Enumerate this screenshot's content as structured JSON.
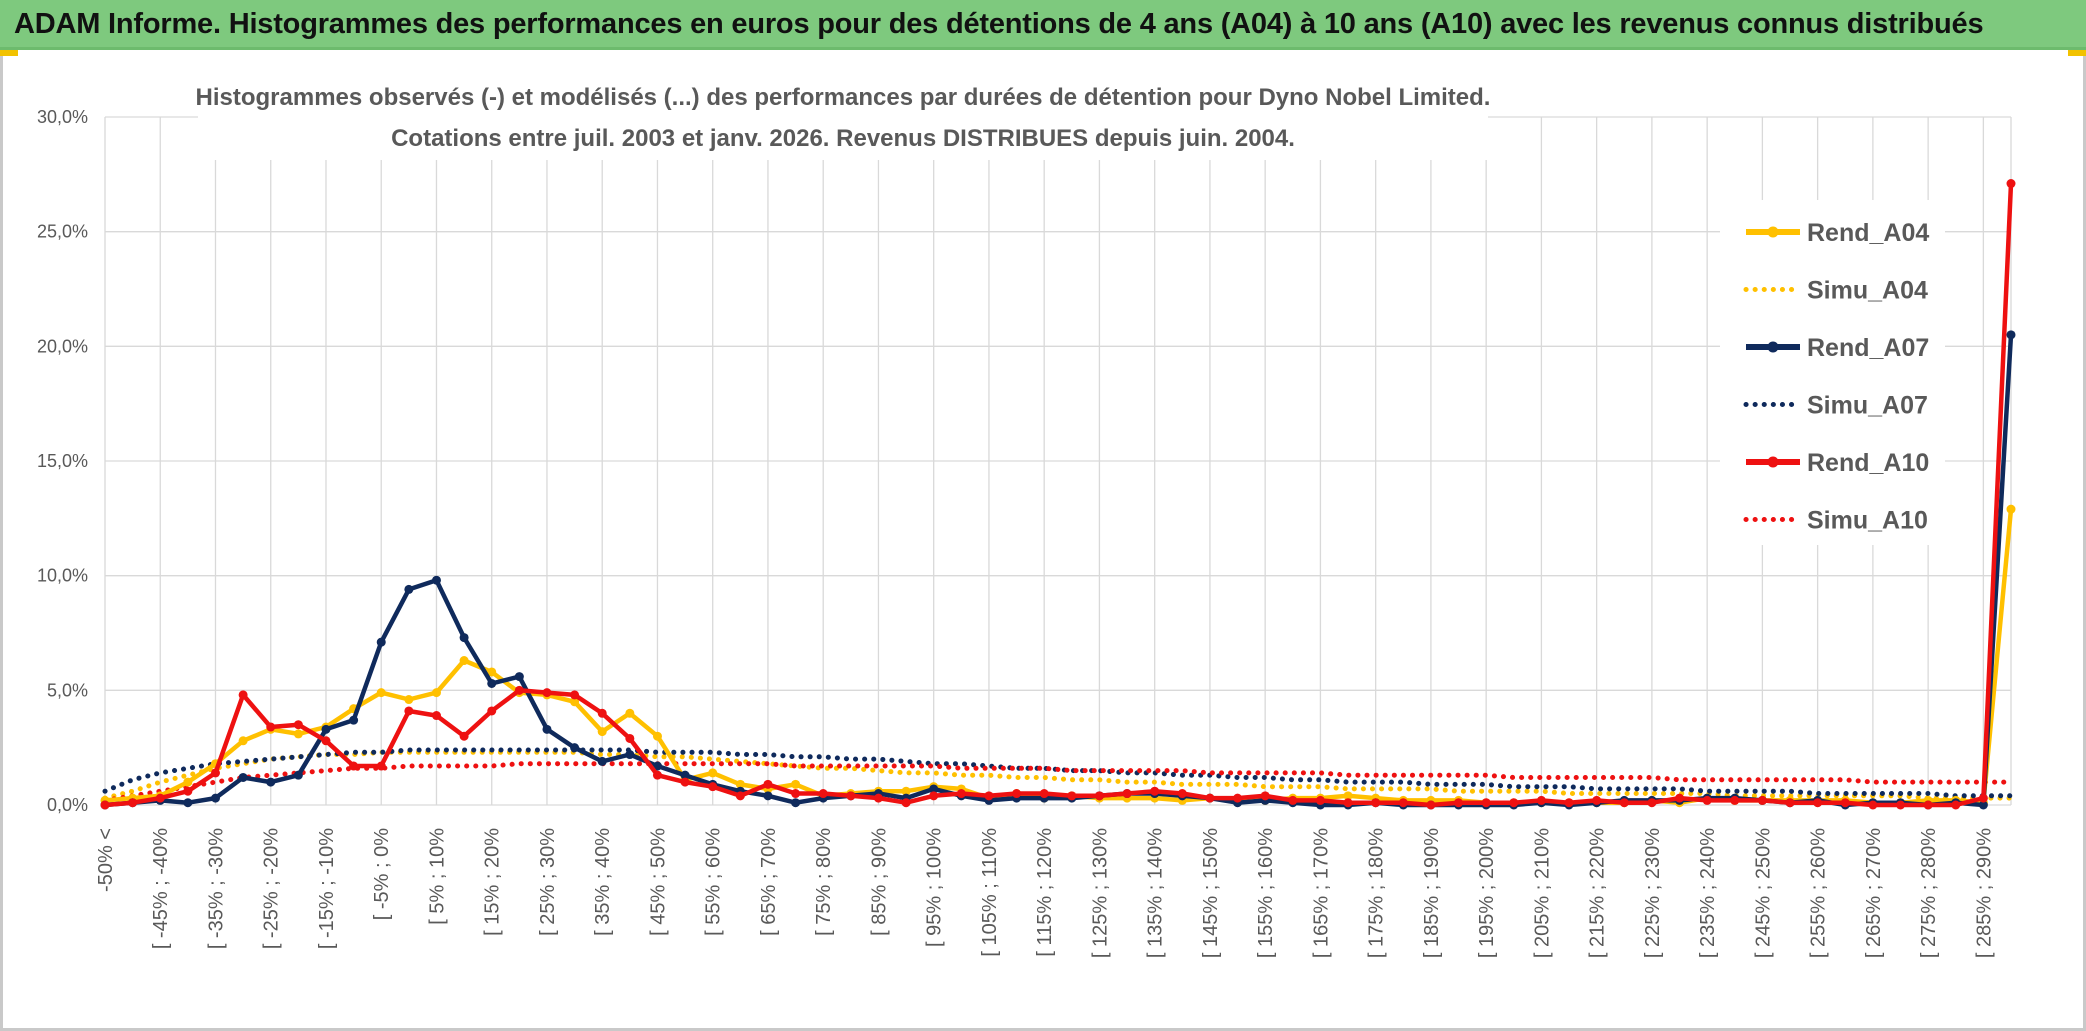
{
  "header": {
    "title": "ADAM Informe. Histogrammes des performances en euros pour des détentions de 4 ans (A04) à 10 ans (A10) avec les revenus connus distribués"
  },
  "colors": {
    "header_bg": "#7ec97e",
    "A04": "#ffc000",
    "A07": "#0f2a5c",
    "A10": "#ee1111"
  },
  "chart_data": {
    "type": "line",
    "title_line1": "Histogrammes observés (-) et modélisés (...) des performances par durées de détention pour Dyno Nobel Limited.",
    "title_line2": "Cotations entre juil. 2003 et janv. 2026. Revenus DISTRIBUES depuis juin. 2004.",
    "ylim": [
      0,
      30
    ],
    "yticks": [
      "0,0%",
      "5,0%",
      "10,0%",
      "15,0%",
      "20,0%",
      "25,0%",
      "30,0%"
    ],
    "x_tick_labels": [
      "-50% <",
      "[ -45% ; -40%",
      "[ -35% ; -30%",
      "[ -25% ; -20%",
      "[ -15% ; -10%",
      "[ -5% ; 0%",
      "[ 5% ; 10%",
      "[ 15% ; 20%",
      "[ 25% ; 30%",
      "[ 35% ; 40%",
      "[ 45% ; 50%",
      "[ 55% ; 60%",
      "[ 65% ; 70%",
      "[ 75% ; 80%",
      "[ 85% ; 90%",
      "[ 95% ; 100%",
      "[ 105% ; 110%",
      "[ 115% ; 120%",
      "[ 125% ; 130%",
      "[ 135% ; 140%",
      "[ 145% ; 150%",
      "[ 155% ; 160%",
      "[ 165% ; 170%",
      "[ 175% ; 180%",
      "[ 185% ; 190%",
      "[ 195% ; 200%",
      "[ 205% ; 210%",
      "[ 215% ; 220%",
      "[ 225% ; 230%",
      "[ 235% ; 240%",
      "[ 245% ; 250%",
      "[ 255% ; 260%",
      "[ 265% ; 270%",
      "[ 275% ; 280%",
      "[ 285% ; 290%"
    ],
    "n_points": 70,
    "legend_position": "right",
    "series": [
      {
        "name": "Rend_A04",
        "style": "solid",
        "color": "#ffc000",
        "values": [
          0.2,
          0.3,
          0.4,
          1.0,
          1.8,
          2.8,
          3.3,
          3.1,
          3.4,
          4.2,
          4.9,
          4.6,
          4.9,
          6.3,
          5.8,
          4.9,
          4.8,
          4.5,
          3.2,
          4.0,
          3.0,
          1.1,
          1.4,
          0.9,
          0.7,
          0.9,
          0.4,
          0.5,
          0.6,
          0.6,
          0.8,
          0.7,
          0.3,
          0.5,
          0.3,
          0.4,
          0.3,
          0.3,
          0.3,
          0.2,
          0.3,
          0.2,
          0.2,
          0.3,
          0.3,
          0.4,
          0.3,
          0.2,
          0.2,
          0.2,
          0.1,
          0.1,
          0.1,
          0.1,
          0.1,
          0.1,
          0.2,
          0.1,
          0.3,
          0.2,
          0.2,
          0.2,
          0.2,
          0.2,
          0.1,
          0.1,
          0.2,
          0.2,
          0.1,
          12.9
        ]
      },
      {
        "name": "Simu_A04",
        "style": "dotted",
        "color": "#ffc000",
        "values": [
          0.3,
          0.6,
          1.0,
          1.3,
          1.6,
          1.8,
          2.0,
          2.1,
          2.2,
          2.2,
          2.3,
          2.3,
          2.3,
          2.3,
          2.3,
          2.3,
          2.3,
          2.3,
          2.2,
          2.2,
          2.1,
          2.1,
          2.0,
          1.9,
          1.8,
          1.7,
          1.6,
          1.6,
          1.5,
          1.4,
          1.4,
          1.3,
          1.3,
          1.2,
          1.2,
          1.1,
          1.1,
          1.0,
          1.0,
          0.9,
          0.9,
          0.9,
          0.8,
          0.8,
          0.8,
          0.7,
          0.7,
          0.7,
          0.7,
          0.6,
          0.6,
          0.6,
          0.6,
          0.5,
          0.5,
          0.5,
          0.5,
          0.5,
          0.5,
          0.4,
          0.4,
          0.4,
          0.4,
          0.4,
          0.4,
          0.4,
          0.3,
          0.3,
          0.3,
          0.3
        ]
      },
      {
        "name": "Rend_A07",
        "style": "solid",
        "color": "#0f2a5c",
        "values": [
          0.0,
          0.1,
          0.2,
          0.1,
          0.3,
          1.2,
          1.0,
          1.3,
          3.3,
          3.7,
          7.1,
          9.4,
          9.8,
          7.3,
          5.3,
          5.6,
          3.3,
          2.5,
          1.9,
          2.2,
          1.7,
          1.3,
          0.9,
          0.6,
          0.4,
          0.1,
          0.3,
          0.4,
          0.5,
          0.3,
          0.7,
          0.4,
          0.2,
          0.3,
          0.3,
          0.3,
          0.4,
          0.5,
          0.5,
          0.4,
          0.3,
          0.1,
          0.2,
          0.1,
          0.0,
          0.0,
          0.1,
          0.0,
          0.0,
          0.0,
          0.0,
          0.0,
          0.1,
          0.0,
          0.1,
          0.2,
          0.2,
          0.2,
          0.3,
          0.3,
          0.2,
          0.1,
          0.2,
          0.0,
          0.1,
          0.1,
          0.0,
          0.1,
          0.0,
          20.5
        ]
      },
      {
        "name": "Simu_A07",
        "style": "dotted",
        "color": "#0f2a5c",
        "values": [
          0.6,
          1.1,
          1.4,
          1.6,
          1.8,
          1.9,
          2.0,
          2.1,
          2.2,
          2.3,
          2.3,
          2.4,
          2.4,
          2.4,
          2.4,
          2.4,
          2.4,
          2.4,
          2.4,
          2.4,
          2.3,
          2.3,
          2.3,
          2.2,
          2.2,
          2.1,
          2.1,
          2.0,
          2.0,
          1.9,
          1.8,
          1.8,
          1.7,
          1.6,
          1.6,
          1.5,
          1.5,
          1.4,
          1.4,
          1.3,
          1.3,
          1.2,
          1.2,
          1.1,
          1.1,
          1.0,
          1.0,
          1.0,
          0.9,
          0.9,
          0.9,
          0.8,
          0.8,
          0.8,
          0.7,
          0.7,
          0.7,
          0.7,
          0.6,
          0.6,
          0.6,
          0.6,
          0.5,
          0.5,
          0.5,
          0.5,
          0.5,
          0.4,
          0.4,
          0.4
        ]
      },
      {
        "name": "Rend_A10",
        "style": "solid",
        "color": "#ee1111",
        "values": [
          0.0,
          0.1,
          0.3,
          0.6,
          1.4,
          4.8,
          3.4,
          3.5,
          2.8,
          1.7,
          1.7,
          4.1,
          3.9,
          3.0,
          4.1,
          5.0,
          4.9,
          4.8,
          4.0,
          2.9,
          1.3,
          1.0,
          0.8,
          0.4,
          0.9,
          0.5,
          0.5,
          0.4,
          0.3,
          0.1,
          0.4,
          0.5,
          0.4,
          0.5,
          0.5,
          0.4,
          0.4,
          0.5,
          0.6,
          0.5,
          0.3,
          0.3,
          0.4,
          0.2,
          0.2,
          0.1,
          0.1,
          0.1,
          0.0,
          0.1,
          0.1,
          0.1,
          0.2,
          0.1,
          0.2,
          0.1,
          0.1,
          0.3,
          0.2,
          0.2,
          0.2,
          0.1,
          0.1,
          0.1,
          0.0,
          0.0,
          0.0,
          0.0,
          0.3,
          27.1
        ]
      },
      {
        "name": "Simu_A10",
        "style": "dotted",
        "color": "#ee1111",
        "values": [
          0.2,
          0.4,
          0.6,
          0.8,
          1.0,
          1.2,
          1.3,
          1.4,
          1.5,
          1.6,
          1.6,
          1.7,
          1.7,
          1.7,
          1.7,
          1.8,
          1.8,
          1.8,
          1.8,
          1.8,
          1.8,
          1.8,
          1.8,
          1.8,
          1.8,
          1.7,
          1.7,
          1.7,
          1.7,
          1.7,
          1.7,
          1.6,
          1.6,
          1.6,
          1.6,
          1.5,
          1.5,
          1.5,
          1.5,
          1.5,
          1.4,
          1.4,
          1.4,
          1.4,
          1.4,
          1.3,
          1.3,
          1.3,
          1.3,
          1.3,
          1.3,
          1.2,
          1.2,
          1.2,
          1.2,
          1.2,
          1.2,
          1.1,
          1.1,
          1.1,
          1.1,
          1.1,
          1.1,
          1.1,
          1.0,
          1.0,
          1.0,
          1.0,
          1.0,
          1.0
        ]
      }
    ]
  }
}
